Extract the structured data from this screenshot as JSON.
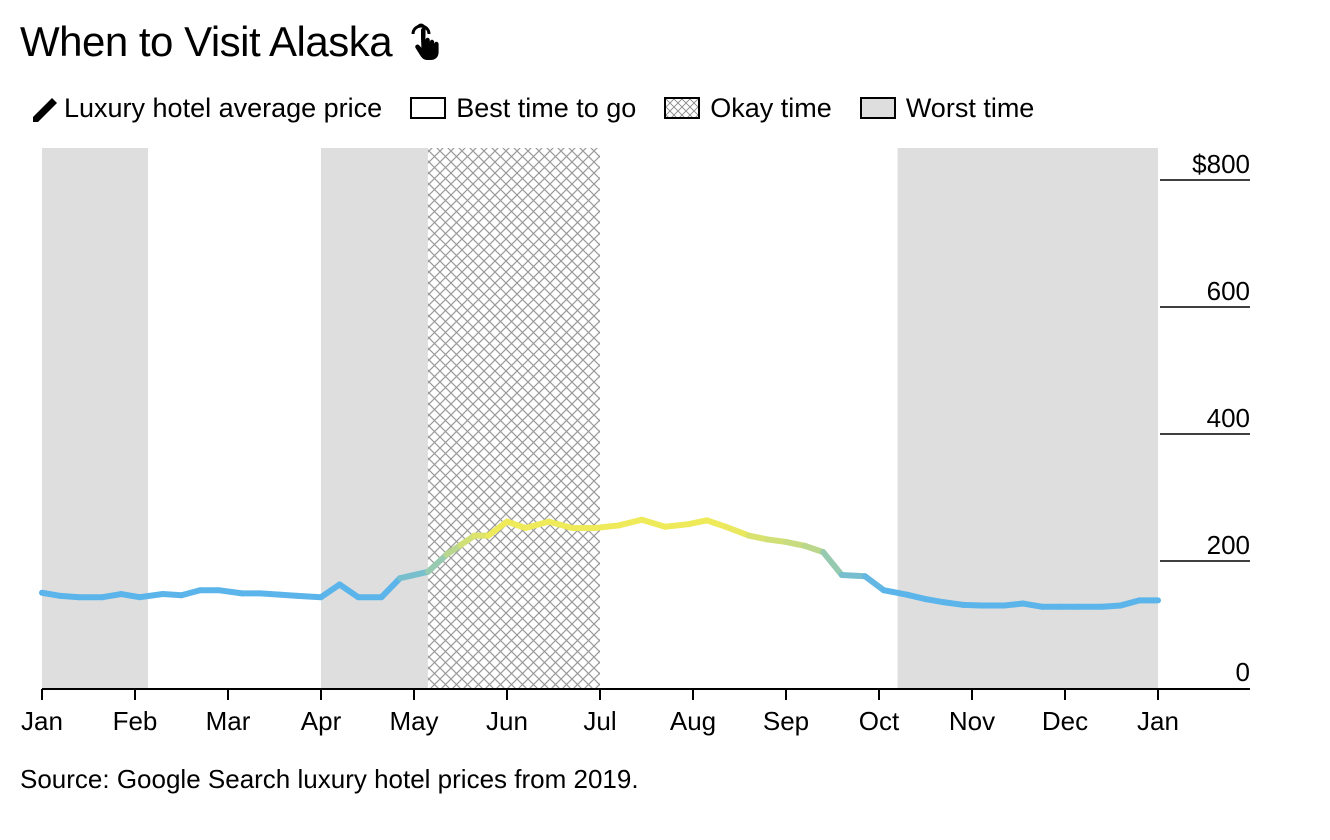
{
  "title": "When to Visit Alaska",
  "title_icon": "pointer-hand-icon",
  "legend": {
    "line_label": "Luxury hotel average price",
    "line_icon": "pencil-icon",
    "best_label": "Best time to go",
    "okay_label": "Okay time",
    "worst_label": "Worst time"
  },
  "source": "Source: Google Search luxury hotel prices from 2019.",
  "chart_data": {
    "type": "line",
    "title": "When to Visit Alaska",
    "xlabel": "",
    "ylabel": "",
    "x_unit": "month (1 = Jan 1)",
    "xlim": [
      1,
      13.1
    ],
    "ylim": [
      0,
      800
    ],
    "y_ticks": [
      0,
      200,
      400,
      600,
      800
    ],
    "y_tick_labels": [
      "0",
      "200",
      "400",
      "600",
      "$800"
    ],
    "x_ticks": [
      1,
      2,
      3,
      4,
      5,
      6,
      7,
      8,
      9,
      10,
      11,
      12,
      13
    ],
    "x_tick_labels": [
      "Jan",
      "Feb",
      "Mar",
      "Apr",
      "May",
      "Jun",
      "Jul",
      "Aug",
      "Sep",
      "Oct",
      "Nov",
      "Dec",
      "Jan"
    ],
    "grid": false,
    "legend_position": "top",
    "colors": {
      "low": "#5bb4ea",
      "high": "#eeea5a",
      "worst_band": "#dedede",
      "hatch": "#9a9a9a"
    },
    "bands": [
      {
        "type": "worst",
        "start": 1.0,
        "end": 2.14
      },
      {
        "type": "best",
        "start": 2.14,
        "end": 4.0
      },
      {
        "type": "worst",
        "start": 4.0,
        "end": 5.15
      },
      {
        "type": "okay",
        "start": 5.15,
        "end": 7.0
      },
      {
        "type": "best",
        "start": 7.0,
        "end": 10.2
      },
      {
        "type": "worst",
        "start": 10.2,
        "end": 13.0
      }
    ],
    "series": [
      {
        "x": [
          1.0,
          1.2,
          1.4,
          1.65,
          1.85,
          2.05,
          2.3,
          2.5,
          2.7,
          2.9,
          3.15,
          3.35,
          3.55,
          3.75,
          4.0,
          4.2,
          4.4,
          4.65,
          4.85,
          5.15,
          5.35,
          5.5,
          5.65,
          5.8,
          6.0,
          6.2,
          6.45,
          6.7,
          6.95,
          7.2,
          7.45,
          7.7,
          7.95,
          8.15,
          8.35,
          8.6,
          8.8,
          9.0,
          9.2,
          9.4,
          9.6,
          9.85,
          10.05,
          10.3,
          10.5,
          10.7,
          10.9,
          11.1,
          11.35,
          11.55,
          11.75,
          11.95,
          12.15,
          12.4,
          12.6,
          12.8,
          13.0
        ],
        "values": [
          150,
          145,
          143,
          143,
          148,
          143,
          148,
          146,
          154,
          154,
          149,
          149,
          147,
          145,
          143,
          163,
          143,
          143,
          173,
          183,
          210,
          225,
          240,
          240,
          262,
          252,
          262,
          252,
          252,
          256,
          265,
          254,
          258,
          264,
          254,
          240,
          234,
          230,
          224,
          214,
          178,
          176,
          154,
          147,
          140,
          135,
          131,
          130,
          130,
          133,
          128,
          128,
          128,
          128,
          130,
          138,
          138
        ]
      }
    ]
  }
}
